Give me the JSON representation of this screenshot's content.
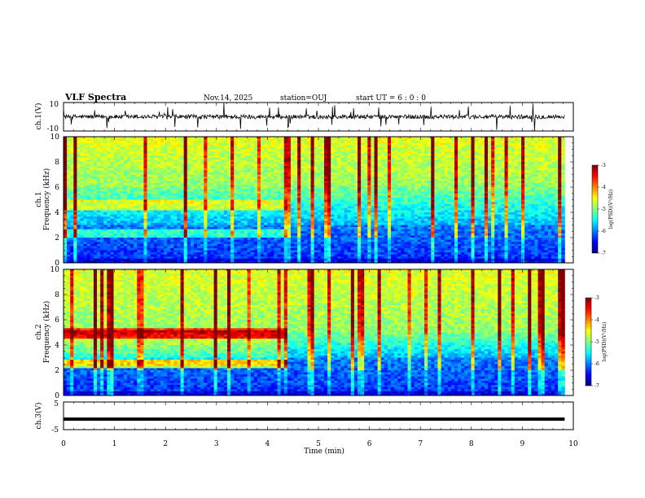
{
  "header": {
    "title": "VLF Spectra",
    "date": "Nov.14, 2025",
    "station": "station=OUJ",
    "start": "start  UT =   6 : 0  : 0"
  },
  "chart_data": [
    {
      "type": "line",
      "panel": "ch1_waveform",
      "ylabel": "ch.1(V)",
      "ylim": [
        -10,
        10
      ],
      "ytick_labels": [
        "10",
        "-10"
      ],
      "xlim": [
        0,
        10
      ],
      "description_values": {
        "baseline": 0,
        "typical_noise_amplitude": 1.5,
        "data_end_min": 9.83
      }
    },
    {
      "type": "heatmap",
      "panel": "ch1_spectrogram",
      "ylabel": "ch.1\nFrequency (kHz)",
      "ylabel_top": "ch.1",
      "ylabel_bottom": "Frequency (kHz)",
      "ylim": [
        0,
        10
      ],
      "yticks": [
        0,
        2,
        4,
        6,
        8,
        10
      ],
      "ytick_labels": [
        "0",
        "2",
        "4",
        "6",
        "8",
        "10"
      ],
      "xlim": [
        0,
        10
      ],
      "data_end_min": 9.83,
      "colorbar": {
        "range": [
          -7,
          -3
        ],
        "ticks": [
          "-3",
          "-4",
          "-5",
          "-6",
          "-7"
        ],
        "label": "log(PSD)(V²/Hz)"
      },
      "features": {
        "emission_band_khz": [
          4.6,
          2.4
        ],
        "emission_end_min": 4.4,
        "broadband_above_khz": 6
      }
    },
    {
      "type": "heatmap",
      "panel": "ch2_spectrogram",
      "ylabel_top": "ch.2",
      "ylabel_bottom": "Frequency (kHz)",
      "ylim": [
        0,
        10
      ],
      "yticks": [
        0,
        2,
        4,
        6,
        8,
        10
      ],
      "ytick_labels": [
        "0",
        "2",
        "4",
        "6",
        "8",
        "10"
      ],
      "xlim": [
        0,
        10
      ],
      "data_end_min": 9.83,
      "colorbar": {
        "range": [
          -7,
          -3
        ],
        "ticks": [
          "-3",
          "-4",
          "-5",
          "-6",
          "-7"
        ],
        "label": "log(PSD)(V²/Hz)"
      },
      "features": {
        "emission_band_khz": [
          4.9,
          2.5
        ],
        "emission_end_min": 4.4,
        "broadband_above_khz": 5
      }
    },
    {
      "type": "line",
      "panel": "ch3_waveform",
      "ylabel": "ch.3(V)",
      "ylim": [
        -5,
        5
      ],
      "ytick_labels": [
        "5",
        "-5"
      ],
      "xlim": [
        0,
        10
      ],
      "description_values": {
        "constant_level": -1.2,
        "data_end_min": 9.83
      }
    }
  ],
  "xaxis": {
    "label": "Time  (min)",
    "ticks": [
      0,
      1,
      2,
      3,
      4,
      5,
      6,
      7,
      8,
      9,
      10
    ],
    "tick_labels": [
      "0",
      "1",
      "2",
      "3",
      "4",
      "5",
      "6",
      "7",
      "8",
      "9",
      "10"
    ]
  },
  "colors": {
    "jet": [
      "#00007f",
      "#0000ff",
      "#0080ff",
      "#00ffff",
      "#80ff80",
      "#ffff00",
      "#ff8000",
      "#ff0000",
      "#7f0000"
    ]
  }
}
